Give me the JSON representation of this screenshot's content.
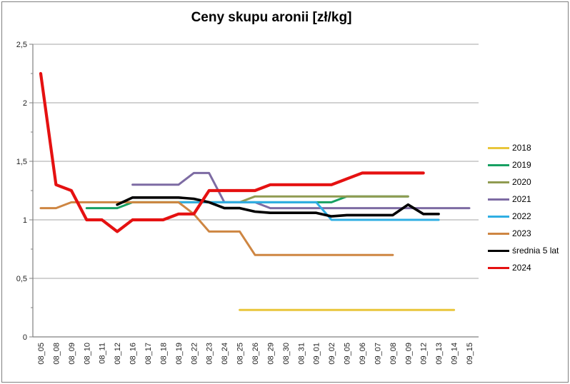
{
  "window": {
    "background_color": "#FFFFFF",
    "border_color": "#808080"
  },
  "chart_data": {
    "type": "line",
    "title": "Ceny skupu aronii [zł/kg]",
    "xlabel": "",
    "ylabel": "",
    "ylim": [
      0,
      2.5
    ],
    "ytick_values": [
      0,
      0.5,
      1,
      1.5,
      2,
      2.5
    ],
    "ytick_labels": [
      "0",
      "0,5",
      "1",
      "1,5",
      "2",
      "2,5"
    ],
    "grid": "horizontal",
    "legend_position": "right",
    "categories": [
      "08_05",
      "08_08",
      "08_09",
      "08_10",
      "08_11",
      "08_12",
      "08_16",
      "08_17",
      "08_18",
      "08_19",
      "08_22",
      "08_23",
      "08_24",
      "08_25",
      "08_26",
      "08_29",
      "08_30",
      "08_31",
      "09_01",
      "09_02",
      "09_05",
      "09_06",
      "09_07",
      "09_08",
      "09_09",
      "09_12",
      "09_13",
      "09_14",
      "09_15"
    ],
    "series": [
      {
        "name": "2018",
        "color": "#E9C63B",
        "values": [
          null,
          null,
          null,
          null,
          null,
          null,
          null,
          null,
          null,
          null,
          null,
          null,
          null,
          0.23,
          0.23,
          0.23,
          0.23,
          0.23,
          0.23,
          0.23,
          0.23,
          0.23,
          0.23,
          0.23,
          0.23,
          0.23,
          0.23,
          0.23,
          null
        ]
      },
      {
        "name": "2019",
        "color": "#17A062",
        "values": [
          null,
          null,
          null,
          1.1,
          1.1,
          1.1,
          1.15,
          1.15,
          1.15,
          1.15,
          1.15,
          1.15,
          1.15,
          1.15,
          1.15,
          1.15,
          1.15,
          1.15,
          1.15,
          1.15,
          1.2,
          1.2,
          1.2,
          1.2,
          1.2,
          null,
          null,
          null,
          null
        ]
      },
      {
        "name": "2020",
        "color": "#909B51",
        "values": [
          null,
          null,
          null,
          null,
          null,
          null,
          1.15,
          1.15,
          1.15,
          1.15,
          1.15,
          1.15,
          1.15,
          1.15,
          1.2,
          1.2,
          1.2,
          1.2,
          1.2,
          1.2,
          1.2,
          1.2,
          1.2,
          1.2,
          1.2,
          null,
          null,
          null,
          null
        ]
      },
      {
        "name": "2021",
        "color": "#7D6BA3",
        "values": [
          null,
          null,
          null,
          null,
          null,
          null,
          1.3,
          1.3,
          1.3,
          1.3,
          1.4,
          1.4,
          1.15,
          1.15,
          1.15,
          1.1,
          1.1,
          1.1,
          1.1,
          1.1,
          1.1,
          1.1,
          1.1,
          1.1,
          1.1,
          1.1,
          1.1,
          1.1,
          1.1
        ]
      },
      {
        "name": "2022",
        "color": "#2FAEE3",
        "values": [
          null,
          null,
          null,
          null,
          null,
          null,
          null,
          null,
          null,
          1.15,
          1.15,
          1.15,
          1.15,
          1.15,
          1.15,
          1.15,
          1.15,
          1.15,
          1.15,
          1.0,
          1.0,
          1.0,
          1.0,
          1.0,
          1.0,
          1.0,
          1.0,
          null,
          null
        ]
      },
      {
        "name": "2023",
        "color": "#CE8642",
        "values": [
          1.1,
          1.1,
          1.15,
          1.15,
          1.15,
          1.15,
          1.15,
          1.15,
          1.15,
          1.15,
          1.05,
          0.9,
          0.9,
          0.9,
          0.7,
          0.7,
          0.7,
          0.7,
          0.7,
          0.7,
          0.7,
          0.7,
          0.7,
          0.7,
          null,
          null,
          null,
          null,
          null
        ]
      },
      {
        "name": "średnia 5 lat",
        "color": "#000000",
        "values": [
          null,
          null,
          null,
          null,
          null,
          1.13,
          1.19,
          1.19,
          1.19,
          1.19,
          1.18,
          1.15,
          1.1,
          1.1,
          1.07,
          1.06,
          1.06,
          1.06,
          1.06,
          1.03,
          1.04,
          1.04,
          1.04,
          1.04,
          1.13,
          1.05,
          1.05,
          null,
          null
        ]
      },
      {
        "name": "2024",
        "color": "#E51111",
        "values": [
          2.25,
          1.3,
          1.25,
          1.0,
          1.0,
          0.9,
          1.0,
          1.0,
          1.0,
          1.05,
          1.05,
          1.25,
          1.25,
          1.25,
          1.25,
          1.3,
          1.3,
          1.3,
          1.3,
          1.3,
          1.35,
          1.4,
          1.4,
          1.4,
          1.4,
          1.4,
          null,
          null,
          null
        ]
      }
    ]
  }
}
